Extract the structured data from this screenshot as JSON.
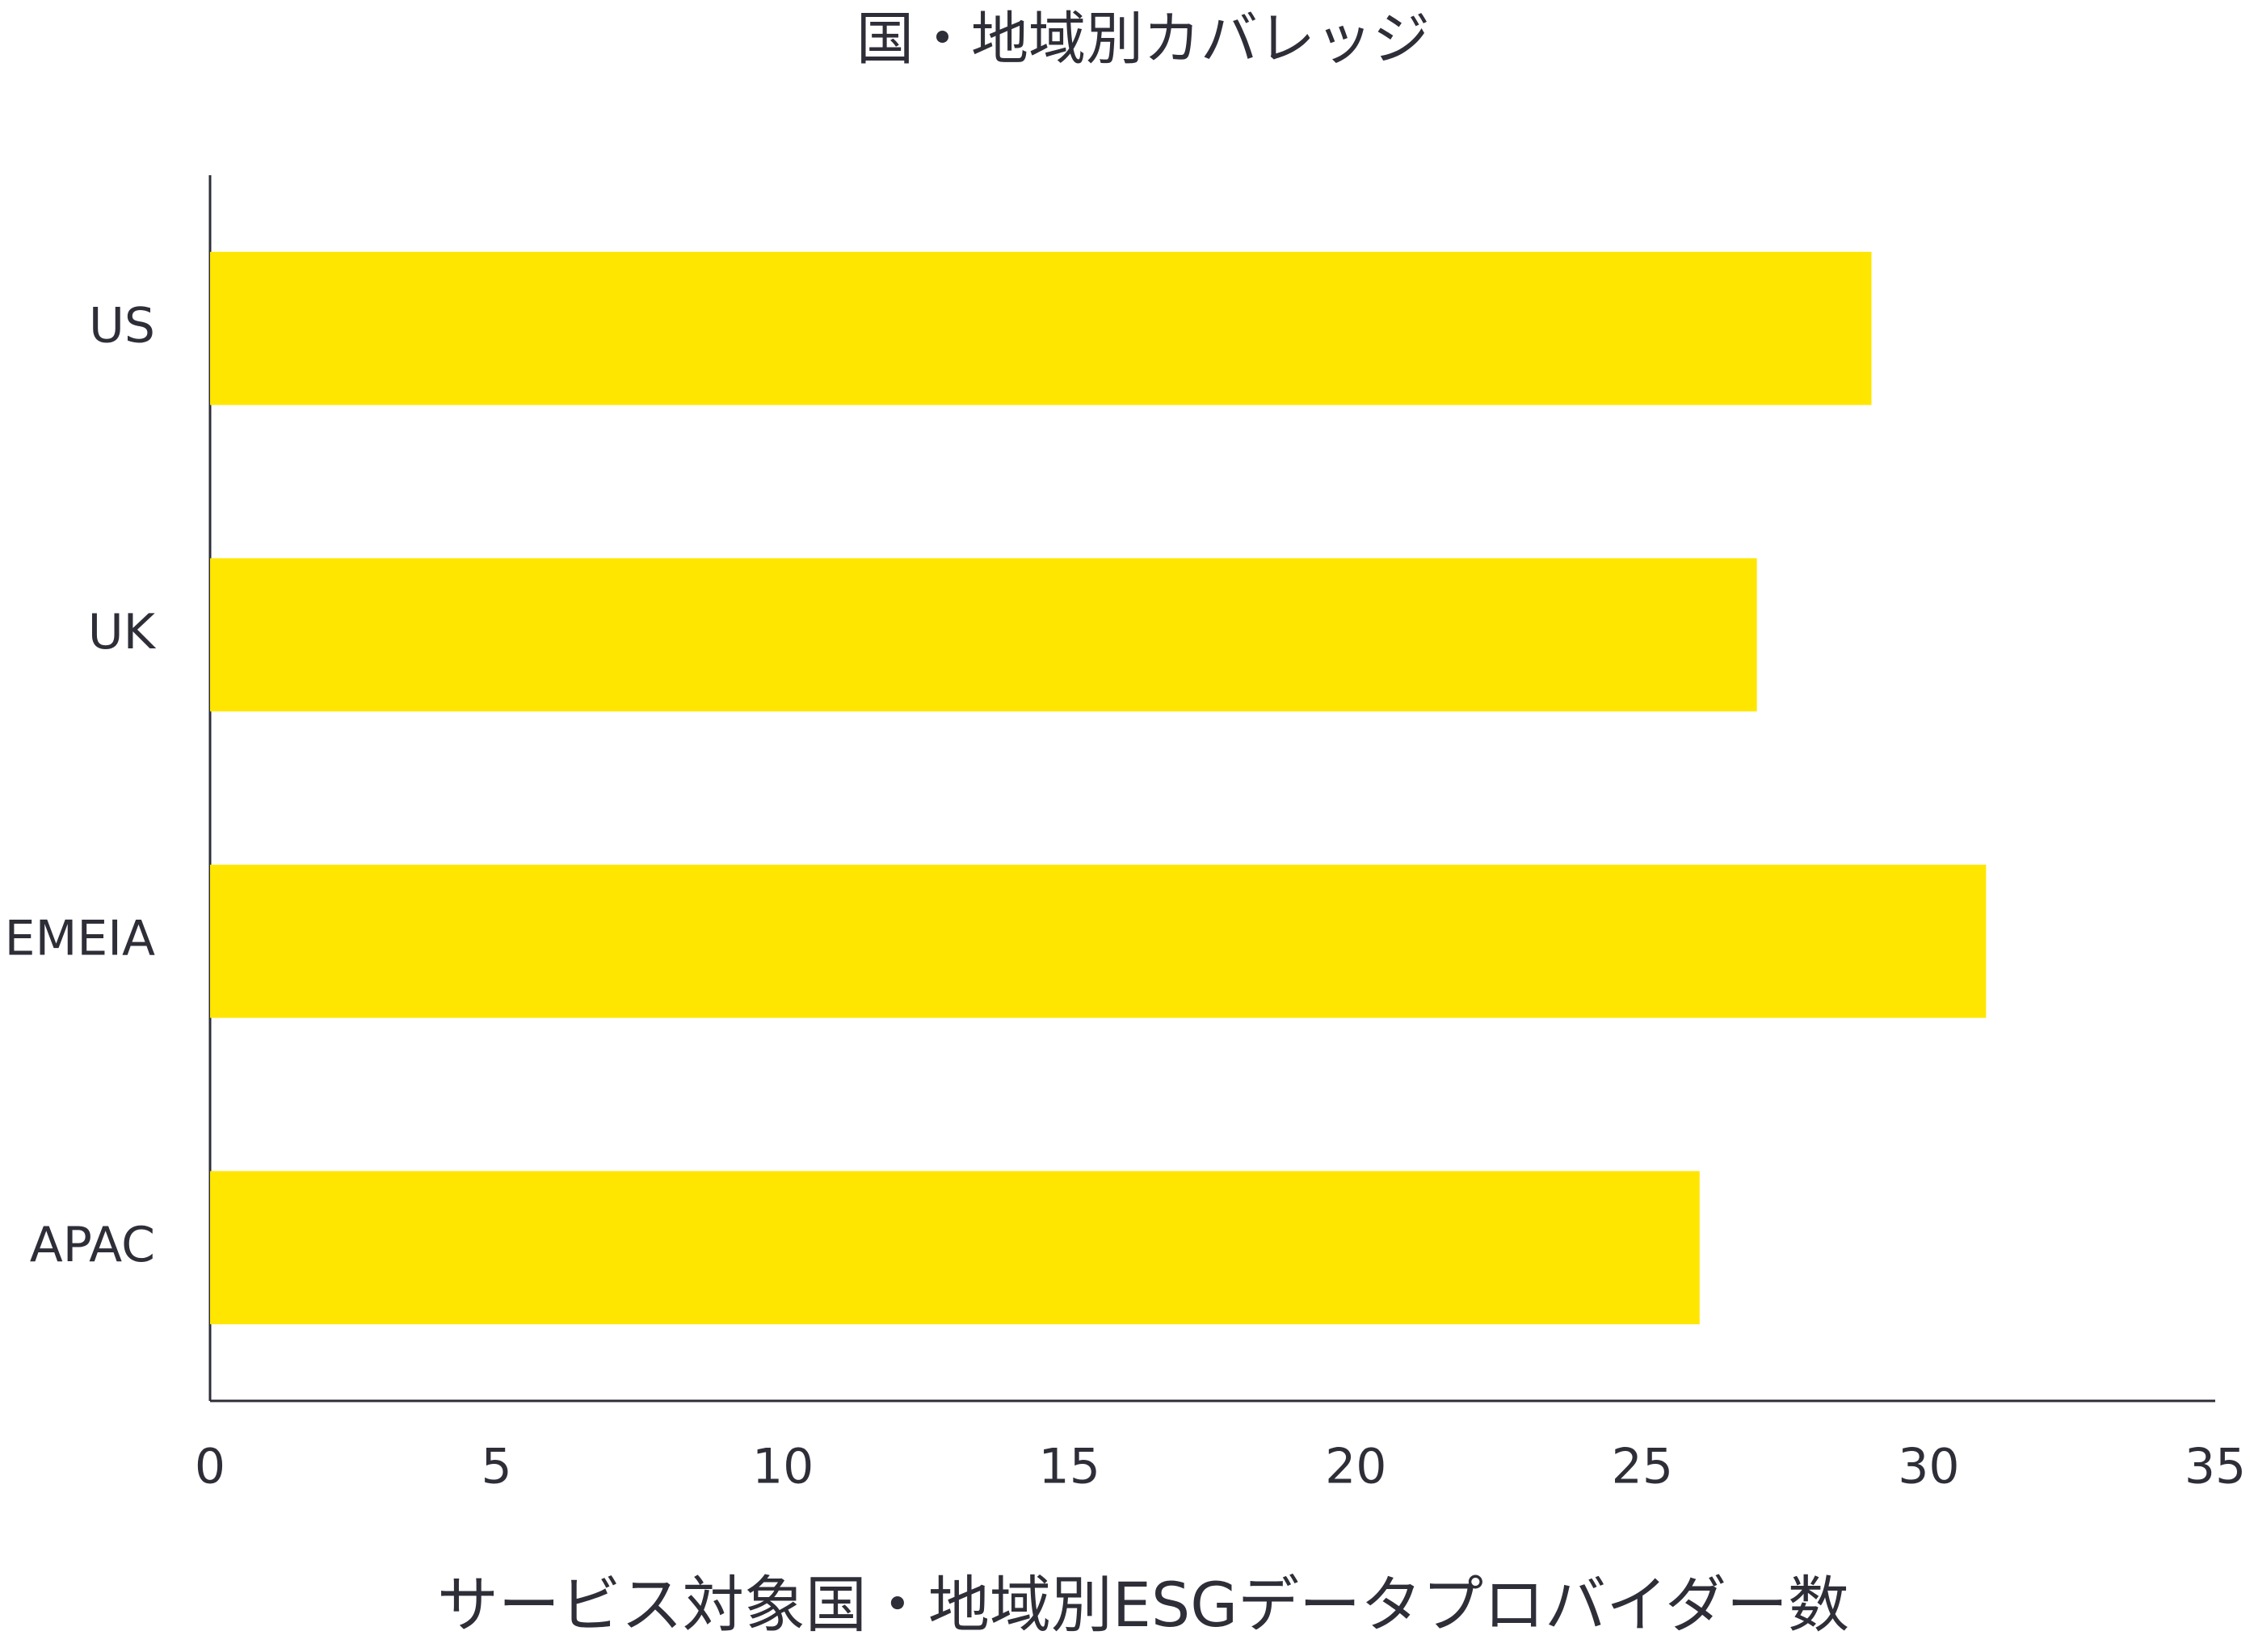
{
  "chart_data": {
    "type": "bar",
    "orientation": "horizontal",
    "title": "国・地域別カバレッジ",
    "x_label": "サービス対象国・地域別ESGデータプロバイダー数",
    "categories": [
      "US",
      "UK",
      "EMEIA",
      "APAC"
    ],
    "values": [
      29,
      27,
      31,
      26
    ],
    "color": "#FFE600",
    "xlim": [
      0,
      35
    ],
    "xticks": [
      0,
      5,
      10,
      15,
      20,
      25,
      30,
      35
    ],
    "grid": false
  }
}
